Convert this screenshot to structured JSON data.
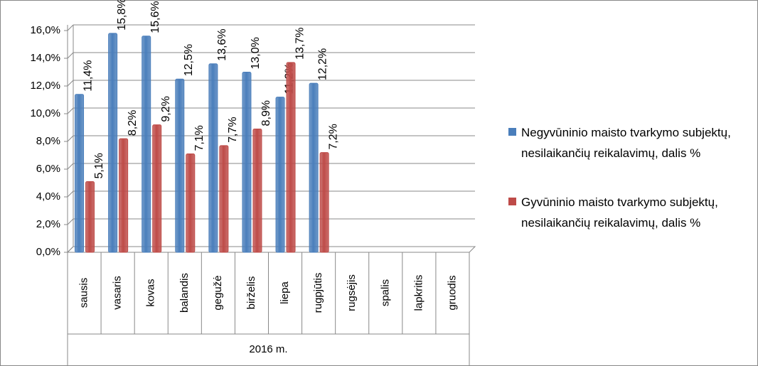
{
  "chart_data": {
    "type": "bar",
    "categories": [
      "sausis",
      "vasaris",
      "kovas",
      "balandis",
      "gegužė",
      "birželis",
      "liepa",
      "rugpjūtis",
      "rugsėjis",
      "spalis",
      "lapkritis",
      "gruodis"
    ],
    "group_label": "2016 m.",
    "series": [
      {
        "name": "Negyvūninio maisto tvarkymo subjektų, nesilaikančių reikalavimų, dalis %",
        "color": "#4a7ebb",
        "values": [
          11.4,
          15.8,
          15.6,
          12.5,
          13.6,
          13.0,
          11.2,
          12.2,
          null,
          null,
          null,
          null
        ],
        "value_labels": [
          "11,4%",
          "15,8%",
          "15,6%",
          "12,5%",
          "13,6%",
          "13,0%",
          "11,2%",
          "12,2%",
          null,
          null,
          null,
          null
        ]
      },
      {
        "name": "Gyvūninio maisto tvarkymo subjektų, nesilaikančių reikalavimų, dalis %",
        "color": "#be4b48",
        "values": [
          5.1,
          8.2,
          9.2,
          7.1,
          7.7,
          8.9,
          13.7,
          7.2,
          null,
          null,
          null,
          null
        ],
        "value_labels": [
          "5,1%",
          "8,2%",
          "9,2%",
          "7,1%",
          "7,7%",
          "8,9%",
          "13,7%",
          "7,2%",
          null,
          null,
          null,
          null
        ]
      }
    ],
    "ylim": [
      0,
      16
    ],
    "yticks": [
      {
        "value": 0,
        "label": "0,0%"
      },
      {
        "value": 2,
        "label": "2,0%"
      },
      {
        "value": 4,
        "label": "4,0%"
      },
      {
        "value": 6,
        "label": "6,0%"
      },
      {
        "value": 8,
        "label": "8,0%"
      },
      {
        "value": 10,
        "label": "10,0%"
      },
      {
        "value": 12,
        "label": "12,0%"
      },
      {
        "value": 14,
        "label": "14,0%"
      },
      {
        "value": 16,
        "label": "16,0%"
      }
    ],
    "grid": true,
    "legend": "right"
  }
}
